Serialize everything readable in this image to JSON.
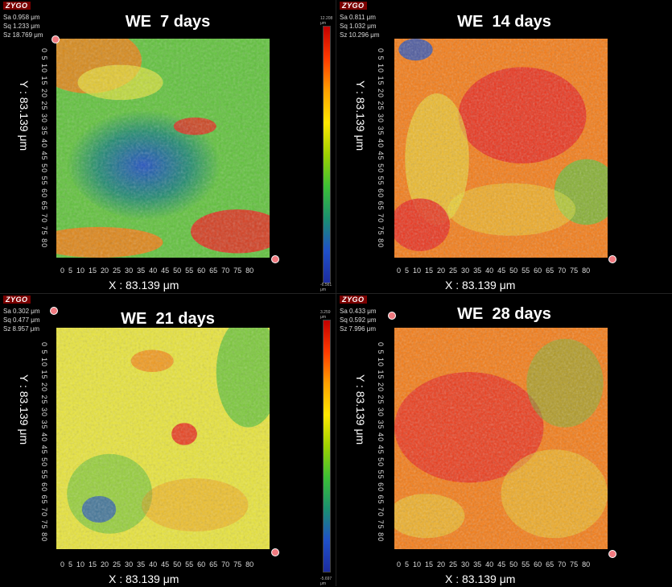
{
  "panels": [
    {
      "logo": "ZYGO",
      "stats": [
        "Sa 0.958  μm",
        "Sq 1.233  μm",
        "Sz 18.769 μm"
      ],
      "title": "WE  7 days",
      "y_label": "Y : 83.139 μm",
      "x_label": "X : 83.139 μm",
      "y_ticks": "0 5 10 15 20 25 30 35 40 45 50 55 60 65 70 75 80",
      "x_ticks": "0  5  10  15  20  25  30  35  40  45  50  55  60  65  70  75  80",
      "colorbar_max": "12.208 μm",
      "colorbar_min": "-6.561 μm"
    },
    {
      "logo": "ZYGO",
      "stats": [
        "Sa 0.811  μm",
        "Sq 1.032  μm",
        "Sz 10.296 μm"
      ],
      "title": "WE  14 days",
      "y_label": "Y : 83.139 μm",
      "x_label": "X : 83.139 μm",
      "y_ticks": "0 5 10 15 20 25 30 35 40 45 50 55 60 65 70 75 80",
      "x_ticks": "0  5  10  15  20  25  30  35  40  45  50  55  60  65  70  75  80",
      "colorbar_max": "",
      "colorbar_min": ""
    },
    {
      "logo": "ZYGO",
      "stats": [
        "Sa 0.302 μm",
        "Sq 0.477 μm",
        "Sz 8.957 μm"
      ],
      "title": "WE  21 days",
      "y_label": "Y : 83.139 μm",
      "x_label": "X : 83.139 μm",
      "y_ticks": "0 5 10 15 20 25 30 35 40 45 50 55 60 65 70 75 80",
      "x_ticks": "0  5  10  15  20  25  30  35  40  45  50  55  60  65  70  75  80",
      "colorbar_max": "3.259 μm",
      "colorbar_min": "-5.697 μm"
    },
    {
      "logo": "ZYGO",
      "stats": [
        "Sa 0.433 μm",
        "Sq 0.592 μm",
        "Sz 7.996 μm"
      ],
      "title": "WE  28 days",
      "y_label": "Y : 83.139 μm",
      "x_label": "X : 83.139 μm",
      "y_ticks": "0 5 10 15 20 25 30 35 40 45 50 55 60 65 70 75 80",
      "x_ticks": "0  5  10  15  20  25  30  35  40  45  50  55  60  65  70  75  80",
      "colorbar_max": "",
      "colorbar_min": ""
    }
  ],
  "colors": {
    "red": "#e8261c",
    "orange": "#f57a12",
    "yellow": "#e8e43a",
    "green": "#5fc23a",
    "teal": "#1e8a6e",
    "blue": "#1f4fc0"
  }
}
